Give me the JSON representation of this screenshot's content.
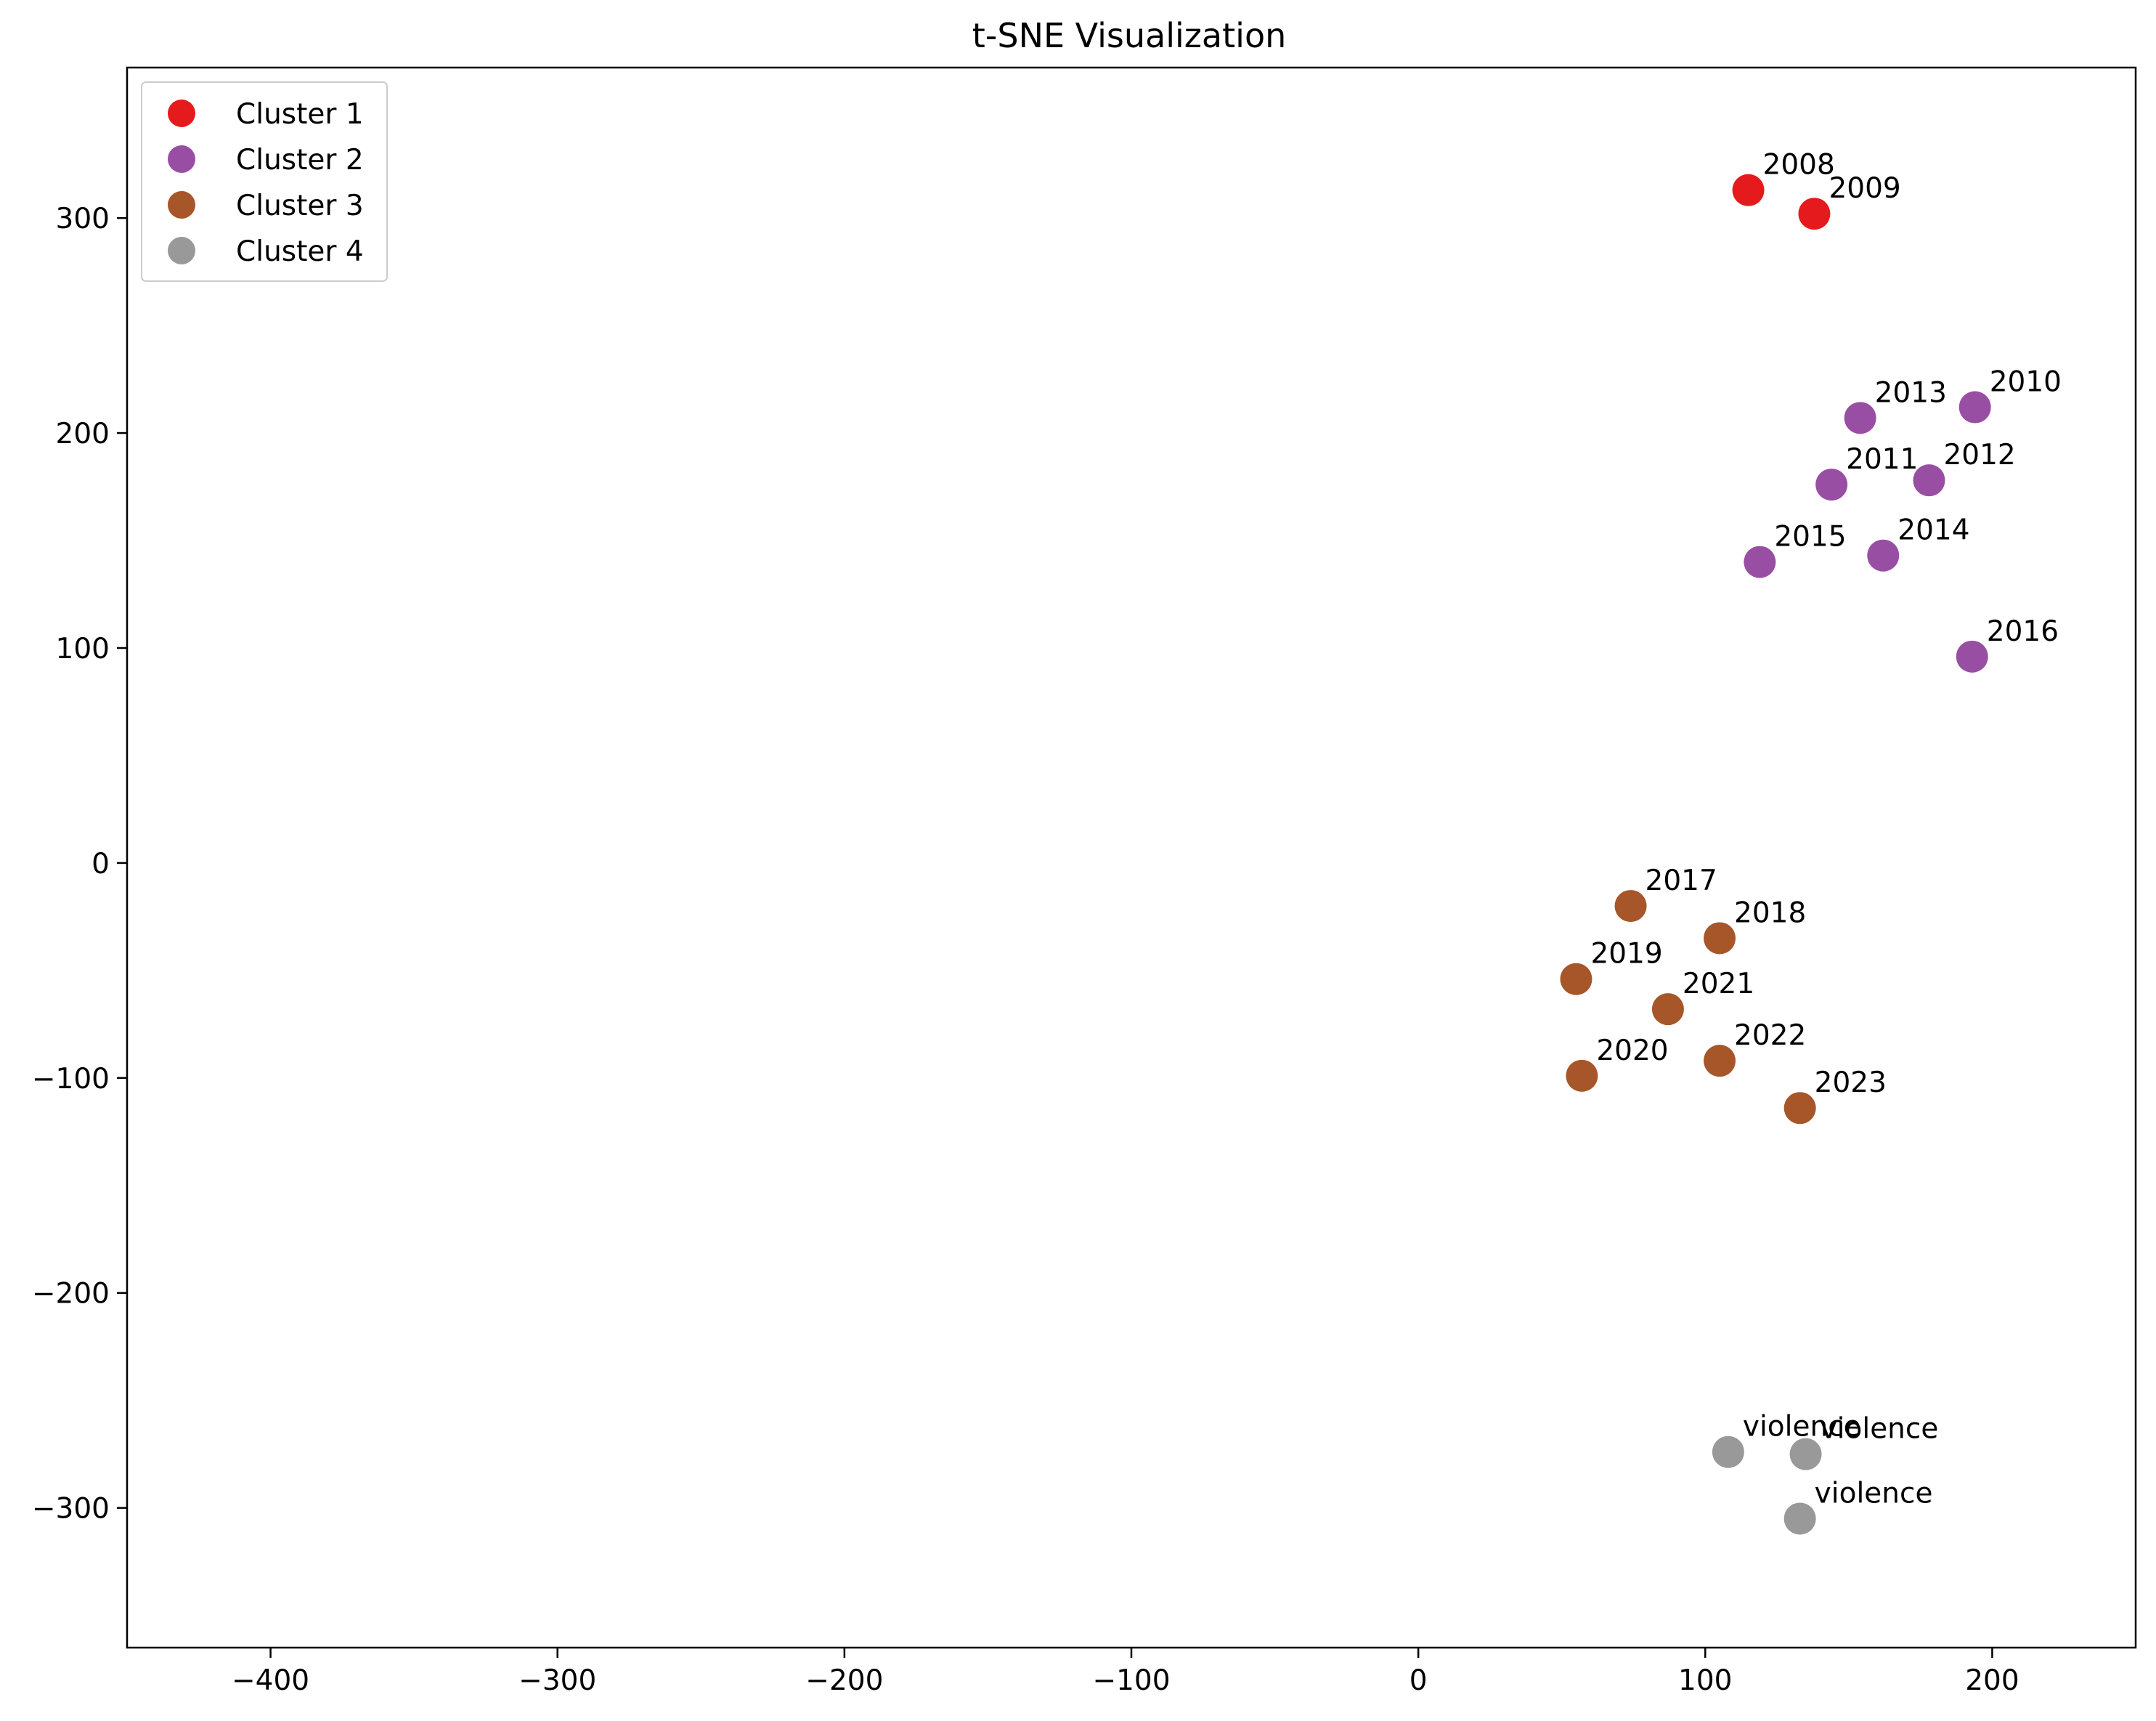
{
  "chart_data": {
    "type": "scatter",
    "title": "t-SNE Visualization",
    "xlabel": "",
    "ylabel": "",
    "xlim": [
      -450,
      250
    ],
    "ylim": [
      -365,
      370
    ],
    "xticks": [
      -400,
      -300,
      -200,
      -100,
      0,
      100,
      200
    ],
    "yticks": [
      -300,
      -200,
      -100,
      0,
      100,
      200,
      300
    ],
    "xtick_labels": [
      "−400",
      "−300",
      "−200",
      "−100",
      "0",
      "100",
      "200"
    ],
    "ytick_labels": [
      "−300",
      "−200",
      "−100",
      "0",
      "100",
      "200",
      "300"
    ],
    "grid": false,
    "legend_position": "top-left",
    "series": [
      {
        "name": "Cluster 1",
        "color": "#e41a1c",
        "points": [
          {
            "x": 115,
            "y": 313,
            "label": "2008"
          },
          {
            "x": 138,
            "y": 302,
            "label": "2009"
          }
        ]
      },
      {
        "name": "Cluster 2",
        "color": "#984ea3",
        "points": [
          {
            "x": 194,
            "y": 212,
            "label": "2010"
          },
          {
            "x": 144,
            "y": 176,
            "label": "2011"
          },
          {
            "x": 178,
            "y": 178,
            "label": "2012"
          },
          {
            "x": 154,
            "y": 207,
            "label": "2013"
          },
          {
            "x": 162,
            "y": 143,
            "label": "2014"
          },
          {
            "x": 119,
            "y": 140,
            "label": "2015"
          },
          {
            "x": 193,
            "y": 96,
            "label": "2016"
          }
        ]
      },
      {
        "name": "Cluster 3",
        "color": "#a65628",
        "points": [
          {
            "x": 74,
            "y": -20,
            "label": "2017"
          },
          {
            "x": 105,
            "y": -35,
            "label": "2018"
          },
          {
            "x": 55,
            "y": -54,
            "label": "2019"
          },
          {
            "x": 57,
            "y": -99,
            "label": "2020"
          },
          {
            "x": 87,
            "y": -68,
            "label": "2021"
          },
          {
            "x": 105,
            "y": -92,
            "label": "2022"
          },
          {
            "x": 133,
            "y": -114,
            "label": "2023"
          }
        ]
      },
      {
        "name": "Cluster 4",
        "color": "#999999",
        "points": [
          {
            "x": 108,
            "y": -274,
            "label": "violence"
          },
          {
            "x": 135,
            "y": -275,
            "label": "violence"
          },
          {
            "x": 133,
            "y": -305,
            "label": "violence"
          }
        ]
      }
    ]
  }
}
